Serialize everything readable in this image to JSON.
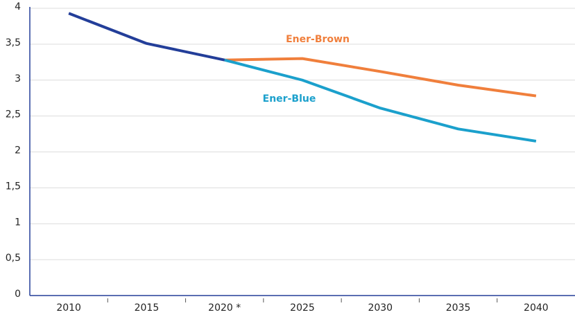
{
  "chart_data": {
    "type": "line",
    "categories": [
      "2010",
      "2015",
      "2020 *",
      "2025",
      "2030",
      "2035",
      "2040"
    ],
    "series": [
      {
        "color": "#233e99",
        "values": [
          3.93,
          3.51,
          3.28,
          null,
          null,
          null,
          null
        ]
      },
      {
        "name": "Ener-Brown",
        "color": "#f07f3c",
        "values": [
          null,
          null,
          3.28,
          3.3,
          3.12,
          2.93,
          2.78
        ]
      },
      {
        "name": "Ener-Blue",
        "color": "#1ba0cc",
        "values": [
          null,
          null,
          3.28,
          3.0,
          2.61,
          2.32,
          2.15
        ]
      }
    ],
    "ylim": [
      0,
      4
    ],
    "yticks": [
      0,
      {
        "value": 0.5,
        "label": "0,5"
      },
      1,
      {
        "value": 1.5,
        "label": "1,5"
      },
      2,
      {
        "value": 2.5,
        "label": "2,5"
      },
      3,
      {
        "value": 3.5,
        "label": "3,5"
      },
      4
    ],
    "grid": true
  }
}
